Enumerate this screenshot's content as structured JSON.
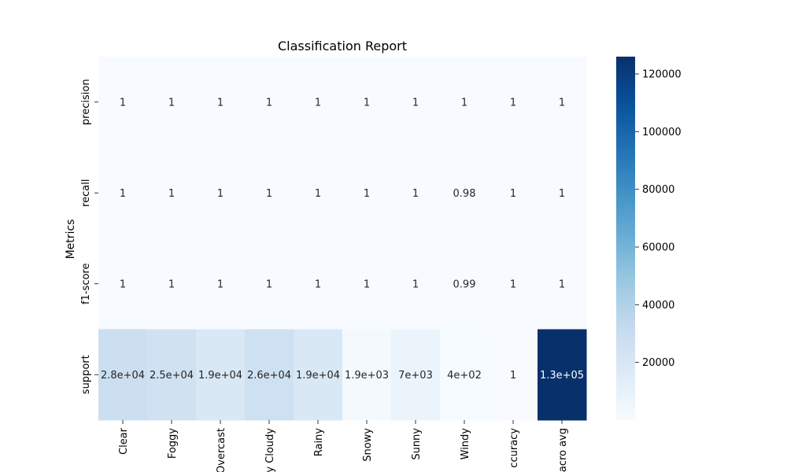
{
  "chart_data": {
    "type": "heatmap",
    "title": "Classification Report",
    "ylabel": "Metrics",
    "xlabel": "",
    "rows": [
      "precision",
      "recall",
      "f1-score",
      "support"
    ],
    "columns": [
      "Clear",
      "Foggy",
      "Overcast",
      "Partly Cloudy",
      "Rainy",
      "Snowy",
      "Sunny",
      "Windy",
      "accuracy",
      "macro avg"
    ],
    "columns_visible_text": [
      "Clear",
      "Foggy",
      "Overcast",
      "y Cloudy",
      "Rainy",
      "Snowy",
      "Sunny",
      "Windy",
      "ccuracy",
      "acro avg"
    ],
    "values": [
      [
        1,
        1,
        1,
        1,
        1,
        1,
        1,
        1,
        1,
        1
      ],
      [
        1,
        1,
        1,
        1,
        1,
        1,
        1,
        0.98,
        1,
        1
      ],
      [
        1,
        1,
        1,
        1,
        1,
        1,
        1,
        0.99,
        1,
        1
      ],
      [
        28000,
        25000,
        19000,
        26000,
        19000,
        1900,
        7000,
        400,
        1,
        130000
      ]
    ],
    "annotations": [
      [
        "1",
        "1",
        "1",
        "1",
        "1",
        "1",
        "1",
        "1",
        "1",
        "1"
      ],
      [
        "1",
        "1",
        "1",
        "1",
        "1",
        "1",
        "1",
        "0.98",
        "1",
        "1"
      ],
      [
        "1",
        "1",
        "1",
        "1",
        "1",
        "1",
        "1",
        "0.99",
        "1",
        "1"
      ],
      [
        "2.8e+04",
        "2.5e+04",
        "1.9e+04",
        "2.6e+04",
        "1.9e+04",
        "1.9e+03",
        "7e+03",
        "4e+02",
        "1",
        "1.3e+05"
      ]
    ],
    "colormap": "Blues",
    "vmin": 0,
    "vmax": 126000,
    "colorbar_ticks": [
      20000,
      40000,
      60000,
      80000,
      100000,
      120000
    ],
    "colorbar_tick_labels": [
      "20000",
      "40000",
      "60000",
      "80000",
      "100000",
      "120000"
    ],
    "grid": false,
    "legend": "colorbar-right"
  }
}
